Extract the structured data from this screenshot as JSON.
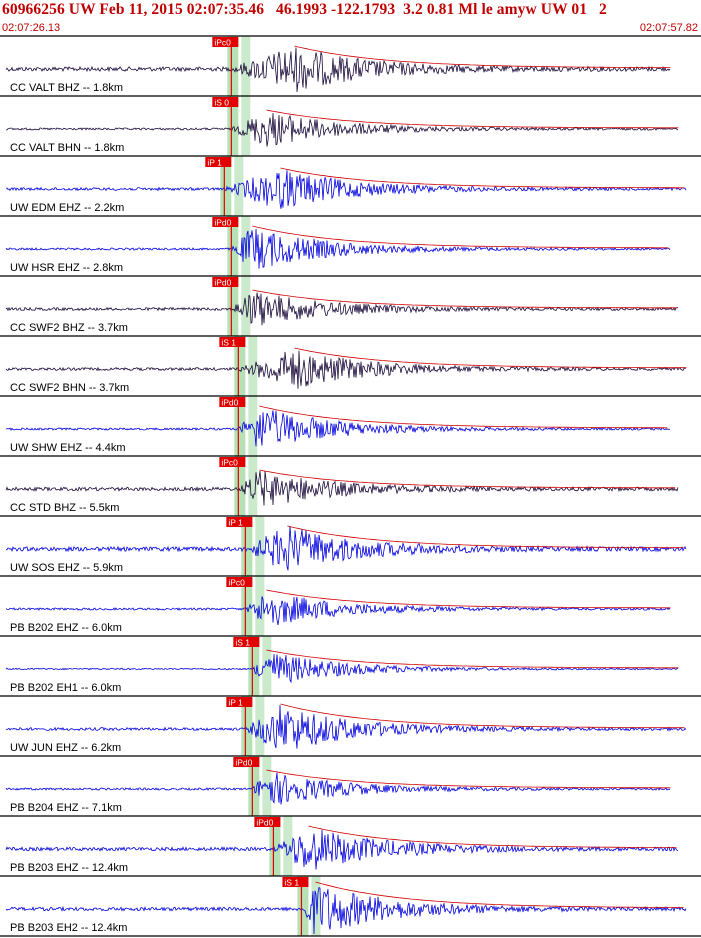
{
  "header": {
    "title": "60966256 UW Feb 11, 2015 02:07:35.46   46.1993 -122.1793  3.2 0.81 Ml le amyw UW 01   2",
    "start_time": "02:07:26.13",
    "end_time": "02:07:57.82"
  },
  "colors": {
    "header_text": "#c00000",
    "trace_black": "#1a0a3a",
    "trace_blue": "#0000e0",
    "pick_red": "#e00000",
    "window_green": "#a8dca8",
    "envelope_red": "#d00000"
  },
  "traces": [
    {
      "label": "CC VALT BHZ -- 1.8km",
      "pick": "iPc0",
      "color": "black",
      "amp": 6,
      "onset": 0.33,
      "burst": 0.42,
      "peak": 22
    },
    {
      "label": "CC VALT BHN -- 1.8km",
      "pick": "iS 0",
      "color": "black",
      "amp": 3,
      "onset": 0.33,
      "burst": 0.38,
      "peak": 18
    },
    {
      "label": "UW EDM EHZ -- 2.2km",
      "pick": "iP 1",
      "color": "blue",
      "amp": 4,
      "onset": 0.32,
      "burst": 0.4,
      "peak": 20
    },
    {
      "label": "UW HSR EHZ -- 2.8km",
      "pick": "iPd0",
      "color": "blue",
      "amp": 3,
      "onset": 0.33,
      "burst": 0.36,
      "peak": 22
    },
    {
      "label": "CC SWF2 BHZ -- 3.7km",
      "pick": "iPd0",
      "color": "black",
      "amp": 4,
      "onset": 0.33,
      "burst": 0.36,
      "peak": 18
    },
    {
      "label": "CC SWF2 BHN -- 3.7km",
      "pick": "iS 1",
      "color": "black",
      "amp": 4,
      "onset": 0.34,
      "burst": 0.42,
      "peak": 20
    },
    {
      "label": "UW SHW EHZ -- 4.4km",
      "pick": "iPd0",
      "color": "blue",
      "amp": 3,
      "onset": 0.34,
      "burst": 0.37,
      "peak": 22
    },
    {
      "label": "CC STD BHZ -- 5.5km",
      "pick": "iPc0",
      "color": "black",
      "amp": 5,
      "onset": 0.34,
      "burst": 0.37,
      "peak": 18
    },
    {
      "label": "UW SOS EHZ -- 5.9km",
      "pick": "iP 1",
      "color": "blue",
      "amp": 6,
      "onset": 0.35,
      "burst": 0.41,
      "peak": 22
    },
    {
      "label": "PB B202 EHZ -- 6.0km",
      "pick": "iPc0",
      "color": "blue",
      "amp": 3,
      "onset": 0.35,
      "burst": 0.38,
      "peak": 18
    },
    {
      "label": "PB B202 EH1 -- 6.0km",
      "pick": "iS 1",
      "color": "blue",
      "amp": 2,
      "onset": 0.36,
      "burst": 0.38,
      "peak": 18
    },
    {
      "label": "UW JUN EHZ -- 6.2km",
      "pick": "iP 1",
      "color": "blue",
      "amp": 4,
      "onset": 0.35,
      "burst": 0.4,
      "peak": 24
    },
    {
      "label": "PB B204 EHZ -- 7.1km",
      "pick": "iPd0",
      "color": "blue",
      "amp": 3,
      "onset": 0.36,
      "burst": 0.38,
      "peak": 18
    },
    {
      "label": "PB B203 EHZ -- 12.4km",
      "pick": "iPd0",
      "color": "blue",
      "amp": 5,
      "onset": 0.39,
      "burst": 0.44,
      "peak": 22
    },
    {
      "label": "PB B203 EH2 -- 12.4km",
      "pick": "iS 1",
      "color": "blue",
      "amp": 5,
      "onset": 0.43,
      "burst": 0.45,
      "peak": 26
    }
  ]
}
